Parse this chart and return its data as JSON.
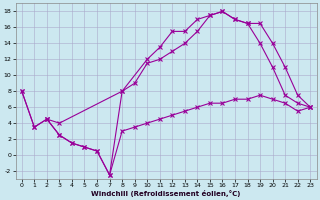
{
  "xlabel": "Windchill (Refroidissement éolien,°C)",
  "background_color": "#cce8f0",
  "grid_color": "#aaaacc",
  "line_color": "#990099",
  "xlim": [
    -0.5,
    23.5
  ],
  "ylim": [
    -3.0,
    19.0
  ],
  "xticks": [
    0,
    1,
    2,
    3,
    4,
    5,
    6,
    7,
    8,
    9,
    10,
    11,
    12,
    13,
    14,
    15,
    16,
    17,
    18,
    19,
    20,
    21,
    22,
    23
  ],
  "yticks": [
    -2,
    0,
    2,
    4,
    6,
    8,
    10,
    12,
    14,
    16,
    18
  ],
  "line1_x": [
    0,
    1,
    2,
    3,
    4,
    5,
    6,
    7,
    8,
    10,
    11,
    12,
    13,
    14,
    15,
    16,
    17,
    18,
    19,
    20,
    21,
    22,
    23
  ],
  "line1_y": [
    8,
    3.5,
    4.5,
    2.5,
    1.5,
    1.0,
    0.5,
    -2.5,
    8.0,
    12.0,
    13.5,
    15.5,
    15.5,
    17.0,
    17.5,
    18.0,
    17.0,
    16.5,
    14.0,
    11.0,
    7.5,
    6.5,
    6.0
  ],
  "line2_x": [
    0,
    1,
    2,
    3,
    4,
    5,
    6,
    7,
    8,
    9,
    10,
    11,
    12,
    13,
    14,
    15,
    16,
    17,
    18,
    19,
    20,
    21,
    22,
    23
  ],
  "line2_y": [
    8,
    3.5,
    4.5,
    2.5,
    1.5,
    1.0,
    0.5,
    -2.5,
    3.0,
    3.5,
    4.0,
    4.5,
    5.0,
    5.5,
    6.0,
    6.5,
    6.5,
    7.0,
    7.0,
    7.5,
    7.0,
    6.5,
    5.5,
    6.0
  ],
  "line3_x": [
    2,
    3,
    8,
    9,
    10,
    11,
    12,
    13,
    14,
    15,
    16,
    17,
    18,
    19,
    20,
    21,
    22,
    23
  ],
  "line3_y": [
    4.5,
    4.0,
    8.0,
    9.0,
    11.5,
    12.0,
    13.0,
    14.0,
    15.5,
    17.5,
    18.0,
    17.0,
    16.5,
    16.5,
    14.0,
    11.0,
    7.5,
    6.0
  ]
}
